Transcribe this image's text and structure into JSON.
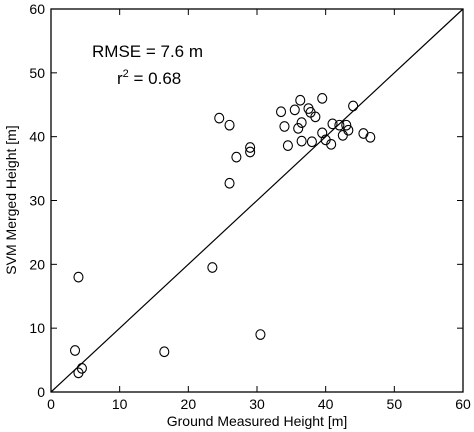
{
  "chart_data": {
    "type": "scatter",
    "title": "",
    "xlabel": "Ground Measured Height [m]",
    "ylabel": "SVM Merged Height [m]",
    "xlim": [
      0,
      60
    ],
    "ylim": [
      0,
      60
    ],
    "xticks": [
      0,
      10,
      20,
      30,
      40,
      50,
      60
    ],
    "yticks": [
      0,
      10,
      20,
      30,
      40,
      50,
      60
    ],
    "grid": false,
    "reference_line": {
      "type": "1:1",
      "from": [
        0,
        0
      ],
      "to": [
        60,
        60
      ]
    },
    "annotations": {
      "rmse": "RMSE = 7.6 m",
      "r2_prefix": "r",
      "r2_sup": "2",
      "r2_rest": " = 0.68"
    },
    "points": [
      {
        "x": 3.5,
        "y": 6.5
      },
      {
        "x": 4.0,
        "y": 3.0
      },
      {
        "x": 4.5,
        "y": 3.7
      },
      {
        "x": 4.0,
        "y": 18.0
      },
      {
        "x": 16.5,
        "y": 6.3
      },
      {
        "x": 23.5,
        "y": 19.5
      },
      {
        "x": 24.5,
        "y": 42.9
      },
      {
        "x": 26.0,
        "y": 41.8
      },
      {
        "x": 26.0,
        "y": 32.7
      },
      {
        "x": 27.0,
        "y": 36.8
      },
      {
        "x": 29.0,
        "y": 38.3
      },
      {
        "x": 29.0,
        "y": 37.6
      },
      {
        "x": 30.5,
        "y": 9.0
      },
      {
        "x": 33.5,
        "y": 43.9
      },
      {
        "x": 34.0,
        "y": 41.6
      },
      {
        "x": 34.5,
        "y": 38.6
      },
      {
        "x": 35.5,
        "y": 44.2
      },
      {
        "x": 36.0,
        "y": 41.3
      },
      {
        "x": 36.3,
        "y": 45.7
      },
      {
        "x": 36.5,
        "y": 42.2
      },
      {
        "x": 36.5,
        "y": 39.3
      },
      {
        "x": 37.5,
        "y": 44.4
      },
      {
        "x": 37.8,
        "y": 43.8
      },
      {
        "x": 38.0,
        "y": 39.2
      },
      {
        "x": 38.5,
        "y": 43.1
      },
      {
        "x": 39.5,
        "y": 46.0
      },
      {
        "x": 39.5,
        "y": 40.6
      },
      {
        "x": 40.0,
        "y": 39.5
      },
      {
        "x": 40.8,
        "y": 38.8
      },
      {
        "x": 41.0,
        "y": 42.0
      },
      {
        "x": 42.0,
        "y": 41.8
      },
      {
        "x": 42.5,
        "y": 40.2
      },
      {
        "x": 43.0,
        "y": 41.8
      },
      {
        "x": 43.3,
        "y": 41.0
      },
      {
        "x": 44.0,
        "y": 44.8
      },
      {
        "x": 45.5,
        "y": 40.5
      },
      {
        "x": 46.5,
        "y": 39.9
      }
    ]
  }
}
